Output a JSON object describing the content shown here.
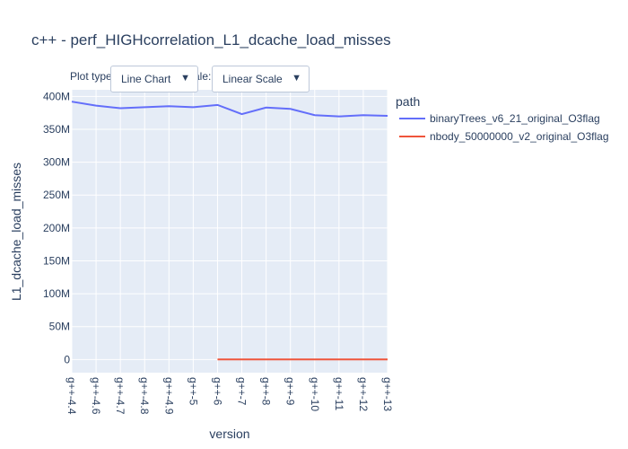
{
  "chart_data": {
    "type": "line",
    "title": "c++ - perf_HIGHcorrelation_L1_dcache_load_misses",
    "xlabel": "version",
    "ylabel": "L1_dcache_load_misses",
    "legend_title": "path",
    "legend_position": "right",
    "categories": [
      "g++-4.4",
      "g++-4.6",
      "g++-4.7",
      "g++-4.8",
      "g++-4.9",
      "g++-5",
      "g++-6",
      "g++-7",
      "g++-8",
      "g++-9",
      "g++-10",
      "g++-11",
      "g++-12",
      "g++-13"
    ],
    "ylim": [
      -20000000,
      410000000
    ],
    "yticks": [
      0,
      50000000,
      100000000,
      150000000,
      200000000,
      250000000,
      300000000,
      350000000,
      400000000
    ],
    "ytick_labels": [
      "0",
      "50M",
      "100M",
      "150M",
      "200M",
      "250M",
      "300M",
      "350M",
      "400M"
    ],
    "grid": true,
    "series": [
      {
        "name": "binaryTrees_v6_21_original_O3flag",
        "color": "#636efa",
        "values": [
          392000000,
          386000000,
          382000000,
          383500000,
          385000000,
          383500000,
          387000000,
          373000000,
          383000000,
          381000000,
          371500000,
          369500000,
          371500000,
          370500000
        ]
      },
      {
        "name": "nbody_50000000_v2_original_O3flag",
        "color": "#ef553b",
        "values": [
          null,
          null,
          null,
          null,
          null,
          null,
          150000,
          150000,
          150000,
          150000,
          150000,
          150000,
          150000,
          150000
        ]
      }
    ]
  },
  "controls": {
    "plot_type_label": "Plot type:",
    "scale_label": "Scale:",
    "plot_type_value": "Line Chart",
    "scale_value": "Linear Scale",
    "arrow": "▼"
  }
}
